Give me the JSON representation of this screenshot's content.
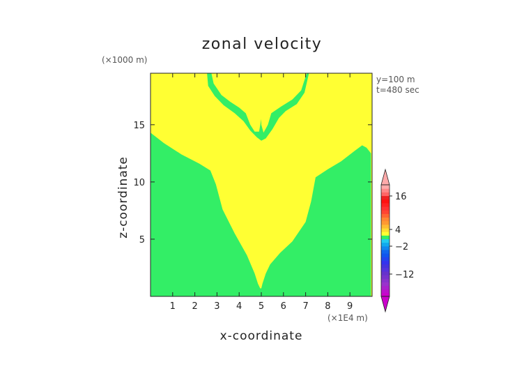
{
  "chart_data": {
    "type": "heatmap",
    "plot_kind": "filled contour",
    "title": "zonal velocity",
    "xlabel": "x-coordinate",
    "ylabel": "z-coordinate",
    "x_multiplier_label": "(×1E4 m)",
    "y_multiplier_label": "(×1000 m)",
    "annotations": [
      "y=100 m",
      "t=480 sec"
    ],
    "xlim": [
      0,
      10
    ],
    "ylim": [
      0,
      19.5
    ],
    "x_ticks": [
      1,
      2,
      3,
      4,
      5,
      6,
      7,
      8,
      9
    ],
    "x_tick_labels": [
      "1",
      "2",
      "3",
      "4",
      "5",
      "6",
      "7",
      "8",
      "9"
    ],
    "y_ticks": [
      5,
      10,
      15
    ],
    "y_tick_labels": [
      "5",
      "10",
      "15"
    ],
    "background_color": "#ffff33",
    "regions": [
      {
        "name": "green",
        "color": "#33ee66",
        "polygon": [
          [
            0,
            16.1
          ],
          [
            0,
            14.3
          ],
          [
            0.6,
            13.4
          ],
          [
            1.4,
            12.4
          ],
          [
            2.2,
            11.6
          ],
          [
            2.7,
            11.0
          ],
          [
            2.95,
            9.8
          ],
          [
            3.25,
            7.6
          ],
          [
            3.8,
            5.5
          ],
          [
            4.35,
            3.6
          ],
          [
            4.7,
            2.0
          ],
          [
            4.85,
            1.1
          ],
          [
            4.95,
            0.7
          ],
          [
            5.0,
            0.7
          ],
          [
            5.05,
            1.1
          ],
          [
            5.2,
            2.0
          ],
          [
            5.4,
            2.8
          ],
          [
            5.85,
            3.8
          ],
          [
            6.4,
            4.8
          ],
          [
            7.0,
            6.5
          ],
          [
            7.25,
            8.3
          ],
          [
            7.45,
            10.4
          ],
          [
            8.0,
            11.1
          ],
          [
            8.6,
            11.8
          ],
          [
            9.2,
            12.7
          ],
          [
            9.55,
            13.2
          ],
          [
            9.75,
            13.0
          ],
          [
            9.95,
            12.5
          ],
          [
            9.95,
            0
          ],
          [
            0,
            0
          ]
        ]
      },
      {
        "name": "green",
        "color": "#33ee66",
        "polygon": [
          [
            0,
            19.5
          ],
          [
            2.75,
            19.5
          ],
          [
            2.85,
            18.6
          ],
          [
            3.2,
            17.6
          ],
          [
            3.6,
            17.0
          ],
          [
            4.0,
            16.5
          ],
          [
            4.3,
            16.0
          ],
          [
            4.5,
            15.0
          ],
          [
            4.7,
            14.4
          ],
          [
            4.9,
            14.4
          ],
          [
            5.0,
            15.5
          ],
          [
            5.0,
            19.5
          ],
          [
            5.0,
            15.0
          ],
          [
            5.1,
            14.3
          ],
          [
            5.3,
            15.0
          ],
          [
            5.45,
            16.0
          ],
          [
            5.9,
            16.6
          ],
          [
            6.4,
            17.2
          ],
          [
            6.8,
            18.0
          ],
          [
            7.05,
            19.5
          ],
          [
            7.15,
            19.5
          ],
          [
            6.95,
            17.8
          ],
          [
            6.6,
            16.8
          ],
          [
            6.1,
            16.2
          ],
          [
            5.8,
            15.6
          ],
          [
            5.5,
            14.6
          ],
          [
            5.2,
            13.8
          ],
          [
            5.0,
            13.6
          ],
          [
            4.8,
            13.9
          ],
          [
            4.5,
            14.5
          ],
          [
            4.2,
            15.3
          ],
          [
            3.8,
            16.0
          ],
          [
            3.3,
            16.7
          ],
          [
            2.9,
            17.5
          ],
          [
            2.6,
            18.4
          ],
          [
            2.55,
            19.5
          ]
        ]
      }
    ],
    "colorbar": {
      "tick_values": [
        16,
        4,
        -2,
        -12
      ],
      "tick_labels": [
        "16",
        "4",
        "−2",
        "−12"
      ],
      "min": -20,
      "max": 20,
      "colors": [
        "#cc00cc",
        "#bb11cc",
        "#aa22cc",
        "#9933cc",
        "#8833cc",
        "#7733cc",
        "#6633cc",
        "#5533dd",
        "#4433dd",
        "#3333ee",
        "#2244ee",
        "#1155ee",
        "#1166ee",
        "#1188ee",
        "#11aaee",
        "#22ccee",
        "#33ee66",
        "#ffff33",
        "#ffdd33",
        "#ffbb33",
        "#ff9933",
        "#ff8833",
        "#ff6633",
        "#ff4433",
        "#ff3333",
        "#ff2222",
        "#ff1111",
        "#ee2222",
        "#ff6666",
        "#ff8888",
        "#ffaaaa"
      ]
    }
  }
}
